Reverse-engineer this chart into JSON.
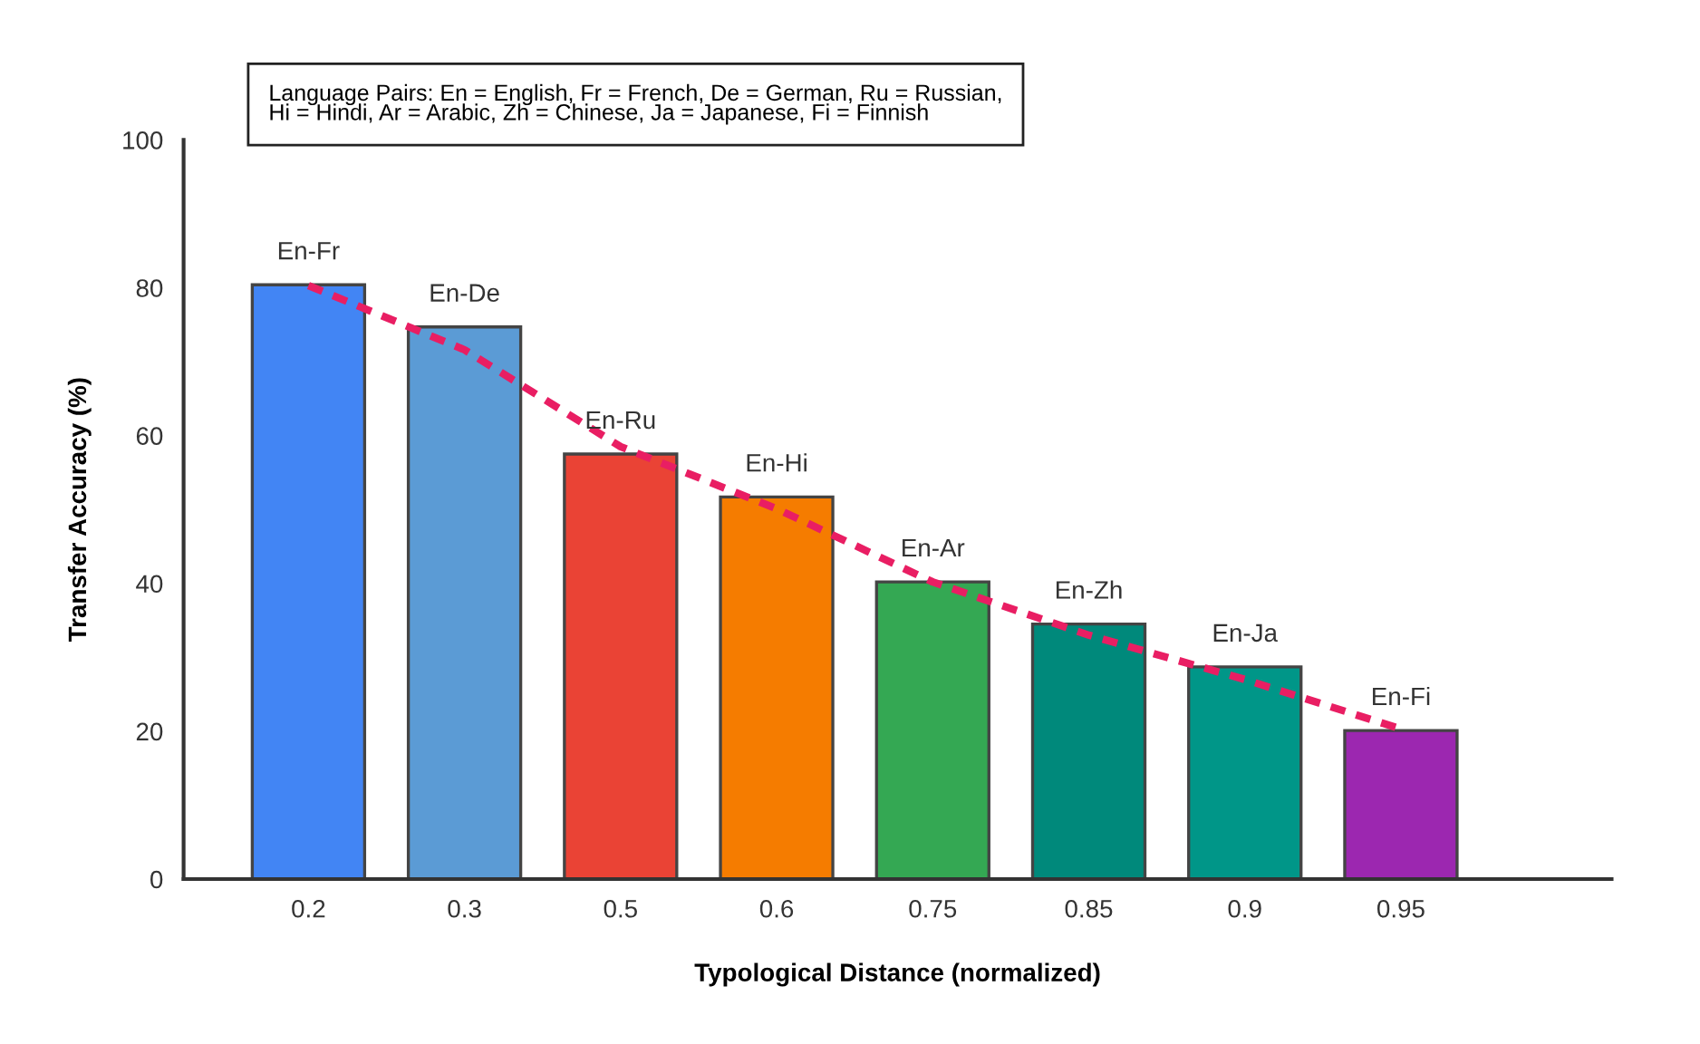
{
  "chart_data": {
    "type": "bar",
    "xlabel": "Typological Distance (normalized)",
    "ylabel": "Transfer Accuracy (%)",
    "categories": [
      "0.2",
      "0.3",
      "0.5",
      "0.6",
      "0.75",
      "0.85",
      "0.9",
      "0.95"
    ],
    "series": [
      {
        "values": [
          80.4,
          74.7,
          57.5,
          51.7,
          40.2,
          34.5,
          28.7,
          20.1
        ],
        "colors": [
          "#4285f4",
          "#5b9bd5",
          "#ea4335",
          "#f57c00",
          "#34a853",
          "#00897b",
          "#009688",
          "#9c27b0"
        ]
      },
      {
        "type": "line",
        "values": [
          80.3,
          71.6,
          58.5,
          50.1,
          40.2,
          33.0,
          27.0,
          20.3
        ],
        "color": "#e91e63",
        "line_style": "dashed",
        "marker": "none"
      }
    ],
    "ylim": [
      0,
      100
    ],
    "yticks": [
      0,
      20,
      40,
      60,
      80,
      100
    ],
    "grid": false,
    "legend": false,
    "annotations": [
      "Language Pairs: En = English, Fr = French, De = German, Ru = Russian,\nHi = Hindi, Ar = Arabic, Zh = Chinese, Ja = Japanese, Fi = Finnish",
      {
        "text": "En-Fr",
        "x": "0.2",
        "y": 80.4
      },
      {
        "text": "En-De",
        "x": "0.3",
        "y": 74.7
      },
      {
        "text": "En-Ru",
        "x": "0.5",
        "y": 57.5
      },
      {
        "text": "En-Hi",
        "x": "0.6",
        "y": 51.7
      },
      {
        "text": "En-Ar",
        "x": "0.75",
        "y": 40.2
      },
      {
        "text": "En-Zh",
        "x": "0.85",
        "y": 34.5
      },
      {
        "text": "En-Ja",
        "x": "0.9",
        "y": 28.7
      },
      {
        "text": "En-Fi",
        "x": "0.95",
        "y": 20.1
      }
    ]
  }
}
